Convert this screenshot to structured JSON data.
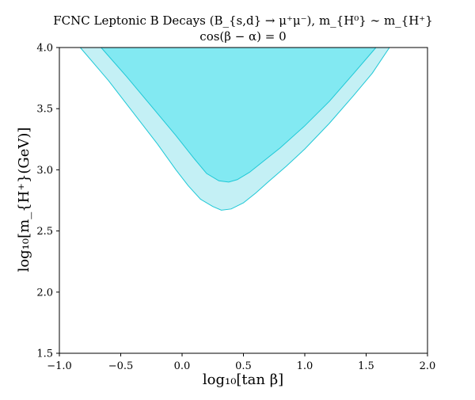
{
  "chart_data": {
    "type": "area",
    "title": "FCNC Leptonic B Decays (B_{s,d} → μ⁺μ⁻), m_{H⁰} ∼ m_{H⁺}",
    "subtitle": "cos(β − α) = 0",
    "xlabel": "log₁₀[tan β]",
    "ylabel": "log₁₀[m_{H⁺}(GeV)]",
    "xlim": [
      -1.0,
      2.0
    ],
    "ylim": [
      1.5,
      4.0
    ],
    "xticks": [
      -1.0,
      -0.5,
      0.0,
      0.5,
      1.0,
      1.5,
      2.0
    ],
    "xtick_labels": [
      "−1.0",
      "−0.5",
      "0.0",
      "0.5",
      "1.0",
      "1.5",
      "2.0"
    ],
    "yticks": [
      1.5,
      2.0,
      2.5,
      3.0,
      3.5,
      4.0
    ],
    "ytick_labels": [
      "1.5",
      "2.0",
      "2.5",
      "3.0",
      "3.5",
      "4.0"
    ],
    "grid": false,
    "regions": [
      {
        "fill": "#c4f0f5",
        "edge": "#1ec8d6",
        "boundary": [
          [
            -0.83,
            4.0
          ],
          [
            -0.6,
            3.73
          ],
          [
            -0.4,
            3.47
          ],
          [
            -0.2,
            3.21
          ],
          [
            -0.05,
            3.0
          ],
          [
            0.05,
            2.87
          ],
          [
            0.15,
            2.76
          ],
          [
            0.25,
            2.7
          ],
          [
            0.32,
            2.67
          ],
          [
            0.4,
            2.68
          ],
          [
            0.5,
            2.73
          ],
          [
            0.6,
            2.81
          ],
          [
            0.7,
            2.9
          ],
          [
            0.85,
            3.03
          ],
          [
            1.0,
            3.17
          ],
          [
            1.2,
            3.38
          ],
          [
            1.4,
            3.61
          ],
          [
            1.55,
            3.79
          ],
          [
            1.69,
            4.0
          ]
        ]
      },
      {
        "fill": "#82e9f2",
        "edge": "#1ec8d6",
        "boundary": [
          [
            -0.66,
            4.0
          ],
          [
            -0.45,
            3.76
          ],
          [
            -0.25,
            3.52
          ],
          [
            -0.05,
            3.28
          ],
          [
            0.1,
            3.09
          ],
          [
            0.2,
            2.97
          ],
          [
            0.3,
            2.91
          ],
          [
            0.38,
            2.9
          ],
          [
            0.45,
            2.92
          ],
          [
            0.55,
            2.98
          ],
          [
            0.65,
            3.06
          ],
          [
            0.8,
            3.18
          ],
          [
            1.0,
            3.36
          ],
          [
            1.2,
            3.56
          ],
          [
            1.4,
            3.79
          ],
          [
            1.58,
            4.0
          ]
        ]
      }
    ]
  }
}
